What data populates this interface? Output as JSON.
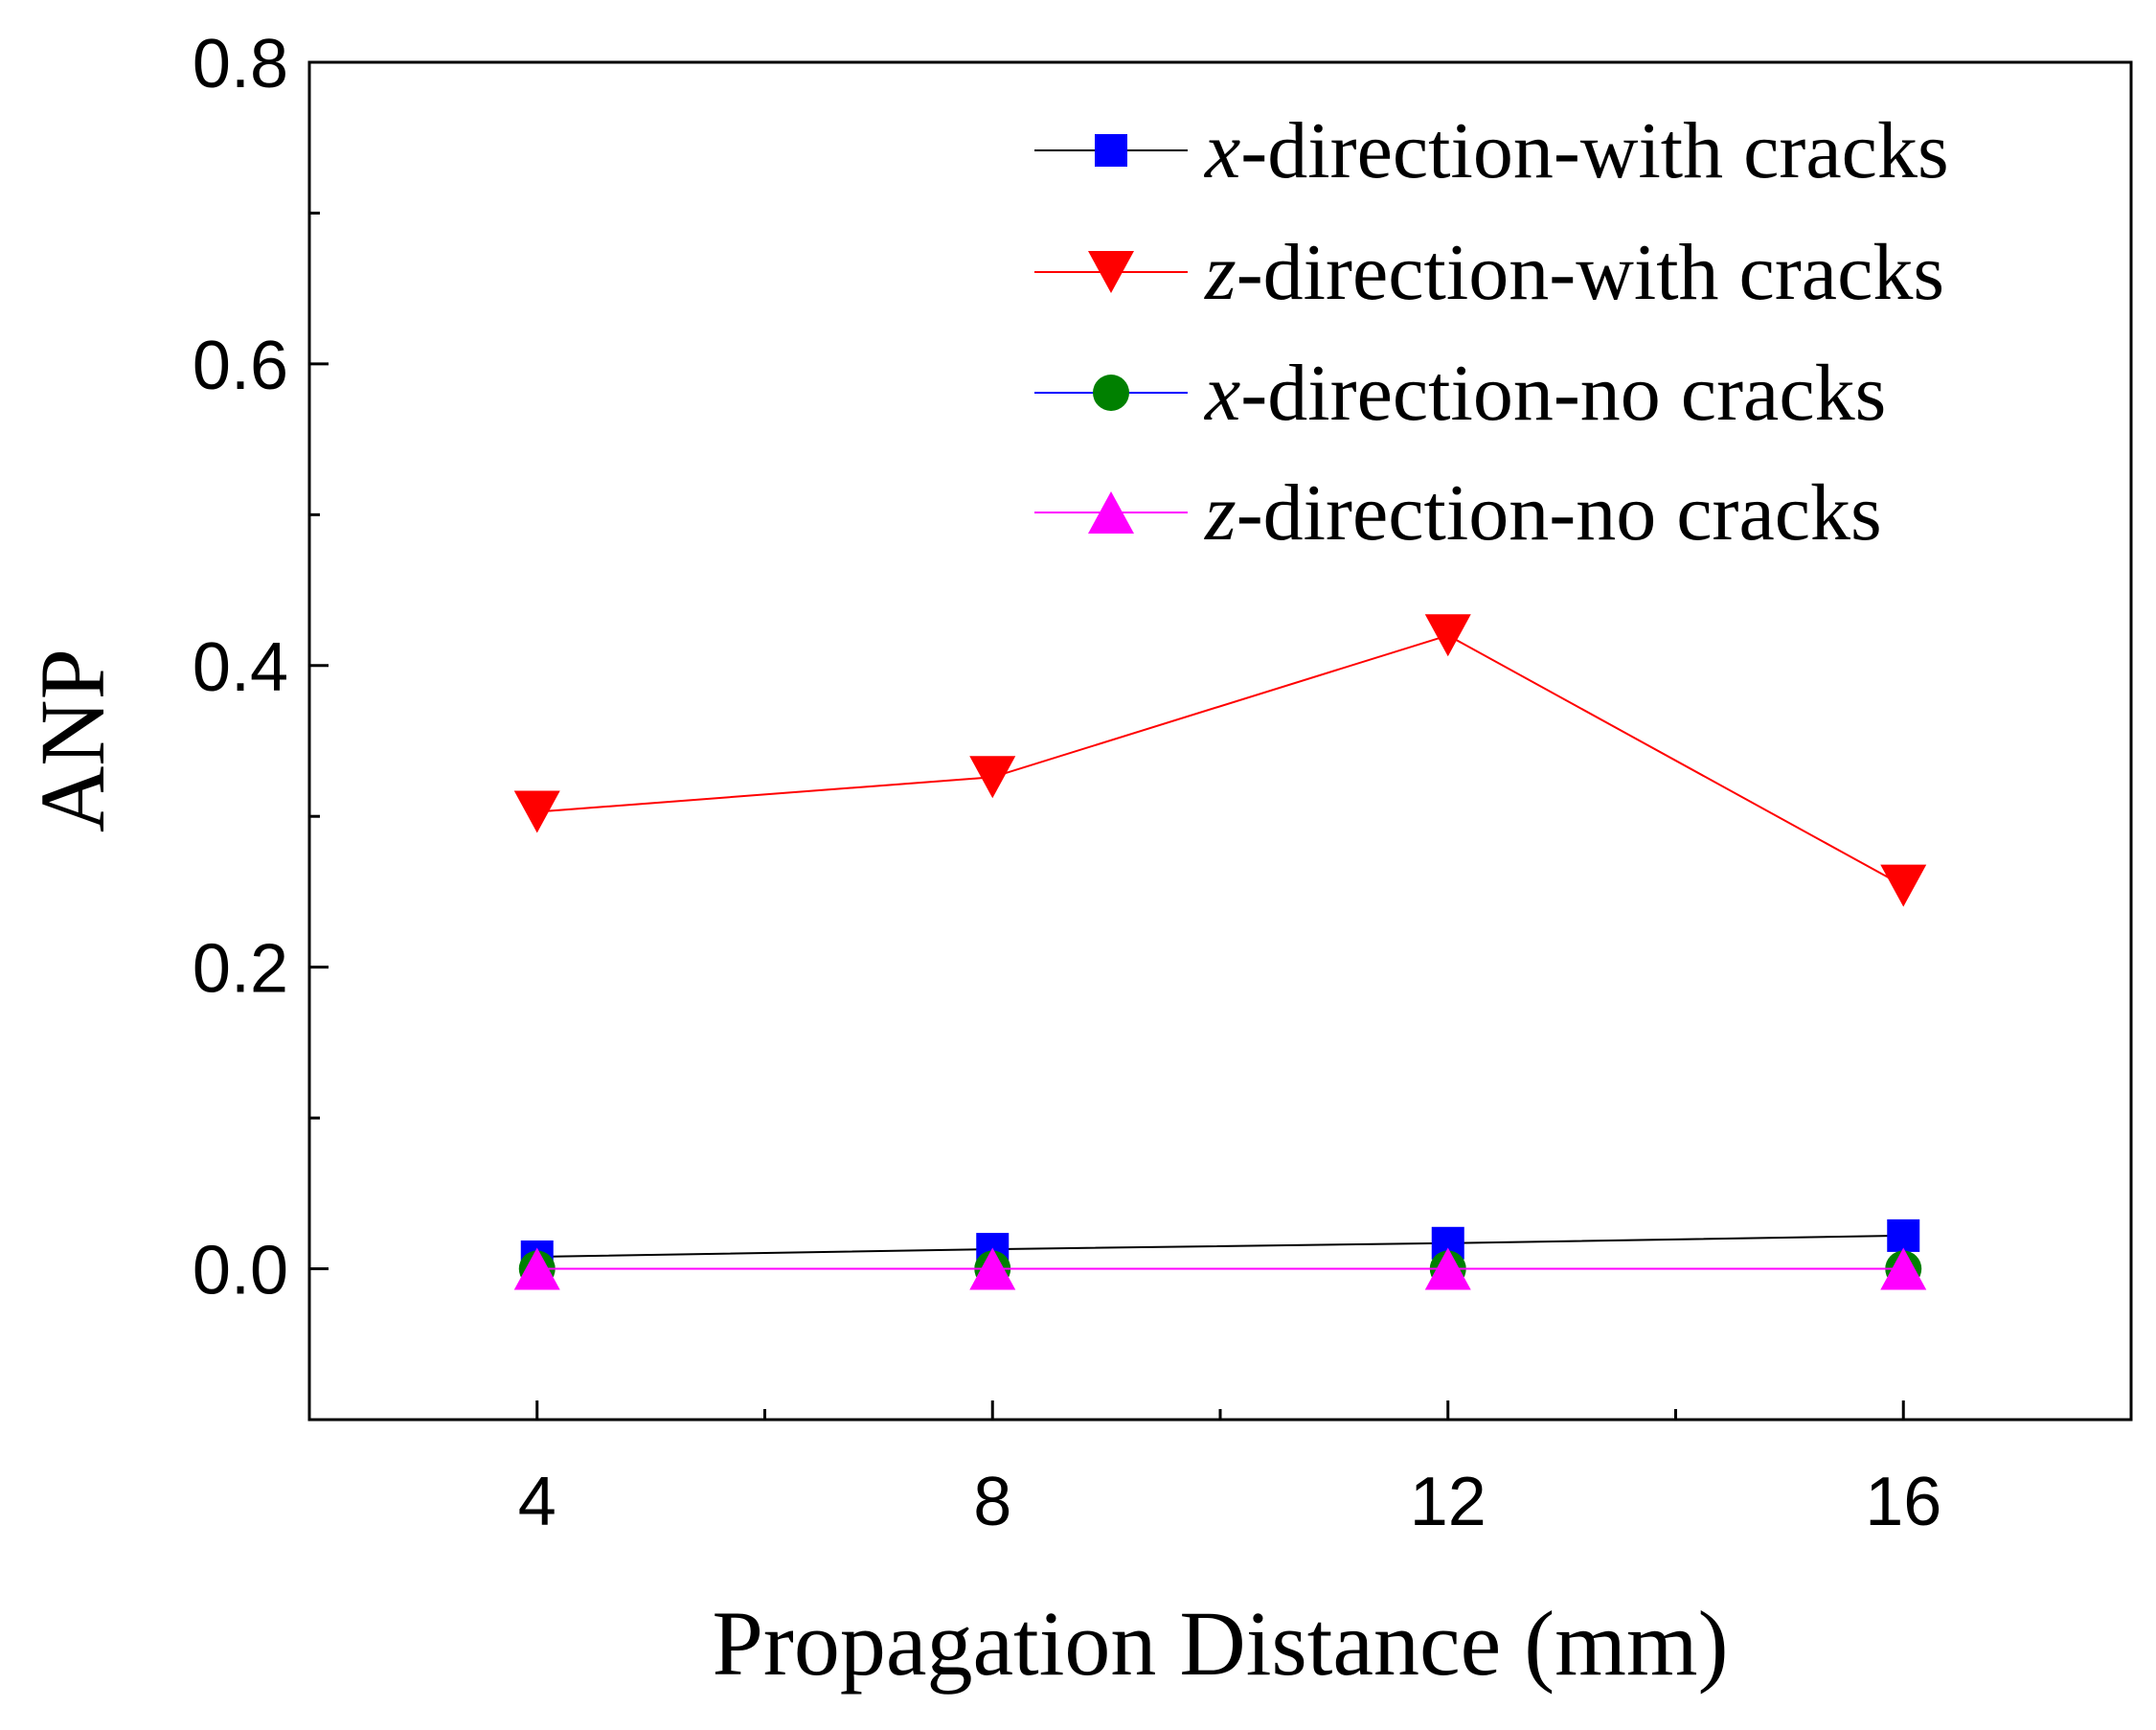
{
  "chart_data": {
    "type": "line",
    "title": "",
    "xlabel": "Propagation Distance (mm)",
    "ylabel": "ANP",
    "xlim": [
      2,
      18
    ],
    "ylim": [
      -0.1,
      0.8
    ],
    "x_ticks": [
      4,
      8,
      12,
      16
    ],
    "x_tick_labels": [
      "4",
      "8",
      "12",
      "16"
    ],
    "x_minor_ticks": [
      6,
      10,
      14
    ],
    "y_ticks": [
      0.0,
      0.2,
      0.4,
      0.6,
      0.8
    ],
    "y_tick_labels": [
      "0.0",
      "0.2",
      "0.4",
      "0.6",
      "0.8"
    ],
    "y_minor_ticks": [
      -0.1,
      0.1,
      0.3,
      0.5,
      0.7
    ],
    "grid": false,
    "legend_position": "top-right",
    "x": [
      4,
      8,
      12,
      16
    ],
    "series": [
      {
        "name": "x-direction-with cracks",
        "var": "x",
        "suffix": "-direction-with cracks",
        "marker": "square",
        "line_color": "#000000",
        "marker_color": "#0000ff",
        "values": [
          0.008,
          0.013,
          0.017,
          0.022
        ]
      },
      {
        "name": "z-direction-with cracks",
        "var": "z",
        "suffix": "-direction-with cracks",
        "marker": "triangle-down",
        "line_color": "#ff0000",
        "marker_color": "#ff0000",
        "values": [
          0.303,
          0.326,
          0.42,
          0.254
        ]
      },
      {
        "name": "x-direction-no cracks",
        "var": "x",
        "suffix": "-direction-no cracks",
        "marker": "circle",
        "line_color": "#0000ff",
        "marker_color": "#008000",
        "values": [
          0.0,
          0.0,
          0.0,
          0.0
        ]
      },
      {
        "name": "z-direction-no cracks",
        "var": "z",
        "suffix": "-direction-no cracks",
        "marker": "triangle-up",
        "line_color": "#ff00ff",
        "marker_color": "#ff00ff",
        "values": [
          0.0,
          0.0,
          0.0,
          0.0
        ]
      }
    ]
  }
}
